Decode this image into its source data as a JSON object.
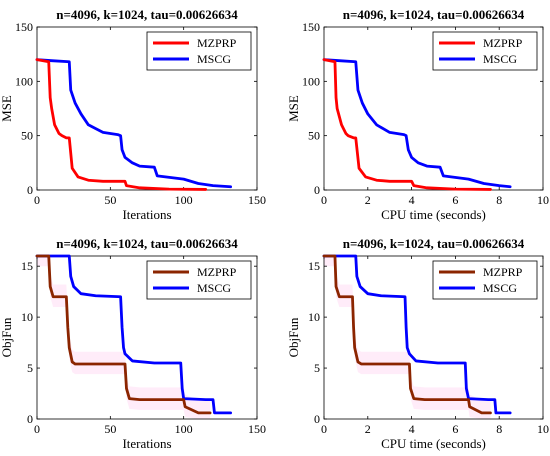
{
  "chart_data": [
    {
      "type": "line",
      "title": "n=4096, k=1024, tau=0.00626634",
      "xlabel": "Iterations",
      "ylabel": "MSE",
      "xlim": [
        0,
        150
      ],
      "ylim": [
        0,
        150
      ],
      "xticks": [
        0,
        50,
        100,
        150
      ],
      "yticks": [
        0,
        50,
        100,
        150
      ],
      "grid": false,
      "legend_position": "top-right",
      "series": [
        {
          "name": "MZPRP",
          "color": "#ff0000",
          "x": [
            0,
            8,
            9,
            10,
            12,
            15,
            17,
            20,
            22,
            24,
            28,
            35,
            45,
            60,
            61,
            70,
            90,
            115
          ],
          "y": [
            120,
            118,
            85,
            75,
            60,
            52,
            50,
            48,
            48,
            20,
            12,
            9,
            8,
            8,
            4,
            2,
            0.8,
            0.5
          ]
        },
        {
          "name": "MSCG",
          "color": "#0000ff",
          "x": [
            0,
            10,
            22,
            23,
            26,
            30,
            35,
            45,
            55,
            57,
            58,
            60,
            65,
            70,
            80,
            82,
            100,
            110,
            120,
            132
          ],
          "y": [
            120,
            119,
            118,
            92,
            80,
            70,
            60,
            53,
            51,
            50,
            37,
            30,
            25,
            22,
            21,
            13,
            10,
            6,
            4,
            3
          ]
        }
      ]
    },
    {
      "type": "line",
      "title": "n=4096, k=1024, tau=0.00626634",
      "xlabel": "CPU time (seconds)",
      "ylabel": "MSE",
      "xlim": [
        0,
        10
      ],
      "ylim": [
        0,
        150
      ],
      "xticks": [
        0,
        2,
        4,
        6,
        8,
        10
      ],
      "yticks": [
        0,
        50,
        100,
        150
      ],
      "grid": false,
      "legend_position": "top-right",
      "series": [
        {
          "name": "MZPRP",
          "color": "#ff0000",
          "x": [
            0,
            0.5,
            0.55,
            0.6,
            0.8,
            1.0,
            1.1,
            1.35,
            1.45,
            1.6,
            1.9,
            2.4,
            3.0,
            4.0,
            4.1,
            4.7,
            6.0,
            7.6
          ],
          "y": [
            120,
            118,
            85,
            75,
            60,
            52,
            50,
            48,
            48,
            20,
            12,
            9,
            8,
            8,
            4,
            2,
            0.8,
            0.5
          ]
        },
        {
          "name": "MSCG",
          "color": "#0000ff",
          "x": [
            0,
            0.7,
            1.45,
            1.55,
            1.75,
            2.0,
            2.4,
            3.0,
            3.65,
            3.75,
            3.85,
            4.0,
            4.3,
            4.7,
            5.3,
            5.45,
            6.6,
            7.3,
            8.0,
            8.5
          ],
          "y": [
            120,
            119,
            118,
            92,
            80,
            70,
            60,
            53,
            51,
            50,
            37,
            30,
            25,
            22,
            21,
            13,
            10,
            6,
            4,
            3
          ]
        }
      ]
    },
    {
      "type": "line",
      "title": "n=4096, k=1024, tau=0.00626634",
      "xlabel": "Iterations",
      "ylabel": "ObjFun",
      "xlim": [
        0,
        150
      ],
      "ylim": [
        0,
        16
      ],
      "xticks": [
        0,
        50,
        100,
        150
      ],
      "yticks": [
        0,
        5,
        10,
        15
      ],
      "grid": false,
      "legend_position": "top-right",
      "series": [
        {
          "name": "MZPRP",
          "color": "#8b2500",
          "x": [
            0,
            8,
            9,
            11,
            14,
            20,
            21,
            22,
            24,
            26,
            35,
            50,
            60,
            61,
            63,
            70,
            90,
            100,
            101,
            110,
            118
          ],
          "y": [
            16,
            16,
            13,
            12,
            12,
            12,
            9,
            7,
            5.6,
            5.4,
            5.4,
            5.4,
            5.4,
            3,
            2,
            1.9,
            1.9,
            1.9,
            1.2,
            0.6,
            0.6
          ]
        },
        {
          "name": "MSCG",
          "color": "#0000ff",
          "x": [
            0,
            22,
            23,
            25,
            30,
            40,
            57,
            58,
            59,
            60,
            65,
            80,
            98,
            99,
            100,
            115,
            120,
            121,
            132
          ],
          "y": [
            16,
            16,
            14,
            13,
            12.3,
            12.1,
            12,
            9,
            7,
            6.4,
            5.7,
            5.5,
            5.5,
            3,
            2,
            1.9,
            1.9,
            0.6,
            0.6
          ]
        }
      ]
    },
    {
      "type": "line",
      "title": "n=4096, k=1024, tau=0.00626634",
      "xlabel": "CPU time (seconds)",
      "ylabel": "ObjFun",
      "xlim": [
        0,
        10
      ],
      "ylim": [
        0,
        16
      ],
      "xticks": [
        0,
        2,
        4,
        6,
        8,
        10
      ],
      "yticks": [
        0,
        5,
        10,
        15
      ],
      "grid": false,
      "legend_position": "top-right",
      "series": [
        {
          "name": "MZPRP",
          "color": "#8b2500",
          "x": [
            0,
            0.5,
            0.55,
            0.7,
            0.9,
            1.3,
            1.35,
            1.4,
            1.55,
            1.7,
            2.3,
            3.3,
            3.9,
            3.95,
            4.1,
            4.6,
            5.9,
            6.6,
            6.65,
            7.2,
            7.6
          ],
          "y": [
            16,
            16,
            13,
            12,
            12,
            12,
            9,
            7,
            5.6,
            5.4,
            5.4,
            5.4,
            5.4,
            3,
            2,
            1.9,
            1.9,
            1.9,
            1.2,
            0.6,
            0.6
          ]
        },
        {
          "name": "MSCG",
          "color": "#0000ff",
          "x": [
            0,
            1.45,
            1.5,
            1.65,
            2.0,
            2.6,
            3.7,
            3.75,
            3.8,
            3.9,
            4.2,
            5.2,
            6.45,
            6.5,
            6.6,
            7.5,
            7.8,
            7.85,
            8.5
          ],
          "y": [
            16,
            16,
            14,
            13,
            12.3,
            12.1,
            12,
            9,
            7,
            6.4,
            5.7,
            5.5,
            5.5,
            3,
            2,
            1.9,
            1.9,
            0.6,
            0.6
          ]
        }
      ]
    }
  ]
}
